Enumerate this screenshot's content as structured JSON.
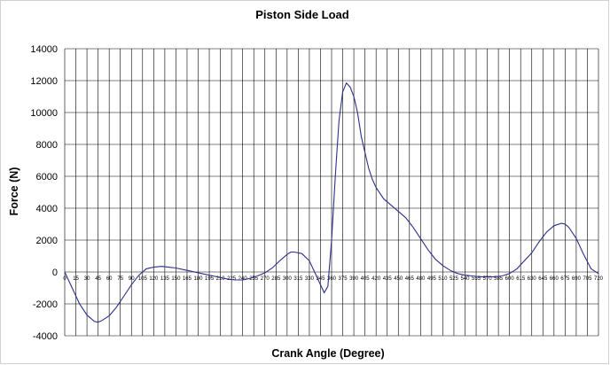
{
  "chart_data": {
    "type": "line",
    "title": "Piston Side Load",
    "xlabel": "Crank Angle (Degree)",
    "ylabel": "Force (N)",
    "xlim": [
      0,
      720
    ],
    "ylim": [
      -4000,
      14000
    ],
    "yticks": [
      -4000,
      -2000,
      0,
      2000,
      4000,
      6000,
      8000,
      10000,
      12000,
      14000
    ],
    "xticks": [
      0,
      15,
      30,
      45,
      60,
      75,
      90,
      105,
      120,
      135,
      150,
      165,
      180,
      195,
      210,
      225,
      240,
      255,
      270,
      285,
      300,
      315,
      330,
      345,
      360,
      375,
      390,
      405,
      420,
      435,
      450,
      465,
      480,
      495,
      510,
      525,
      540,
      555,
      570,
      585,
      600,
      615,
      630,
      645,
      660,
      675,
      690,
      705,
      720
    ],
    "grid": true,
    "legend": "none",
    "series": [
      {
        "color": "#2b2f8a",
        "x": [
          0,
          10,
          20,
          30,
          40,
          45,
          50,
          55,
          60,
          70,
          80,
          90,
          100,
          110,
          120,
          130,
          135,
          140,
          150,
          160,
          170,
          180,
          190,
          200,
          210,
          220,
          230,
          240,
          250,
          260,
          270,
          280,
          290,
          300,
          305,
          310,
          320,
          330,
          340,
          350,
          355,
          360,
          365,
          370,
          375,
          380,
          385,
          390,
          395,
          400,
          405,
          410,
          415,
          420,
          430,
          440,
          450,
          460,
          470,
          480,
          490,
          500,
          510,
          520,
          530,
          540,
          550,
          560,
          570,
          580,
          590,
          600,
          610,
          620,
          630,
          640,
          650,
          660,
          670,
          675,
          680,
          690,
          700,
          710,
          720
        ],
        "y": [
          0,
          -1000,
          -2000,
          -2700,
          -3100,
          -3150,
          -3050,
          -2900,
          -2750,
          -2200,
          -1500,
          -800,
          -200,
          200,
          300,
          350,
          330,
          300,
          250,
          150,
          50,
          -50,
          -150,
          -250,
          -350,
          -450,
          -500,
          -500,
          -400,
          -250,
          -50,
          250,
          700,
          1100,
          1250,
          1250,
          1150,
          700,
          -300,
          -1300,
          -900,
          2000,
          6000,
          9500,
          11300,
          11850,
          11600,
          11000,
          10000,
          8500,
          7500,
          6500,
          5800,
          5300,
          4600,
          4200,
          3800,
          3400,
          2800,
          2100,
          1400,
          800,
          400,
          100,
          -100,
          -200,
          -250,
          -300,
          -300,
          -300,
          -250,
          -100,
          200,
          700,
          1200,
          1900,
          2500,
          2900,
          3050,
          3000,
          2800,
          2100,
          1100,
          200,
          -100
        ]
      }
    ]
  }
}
